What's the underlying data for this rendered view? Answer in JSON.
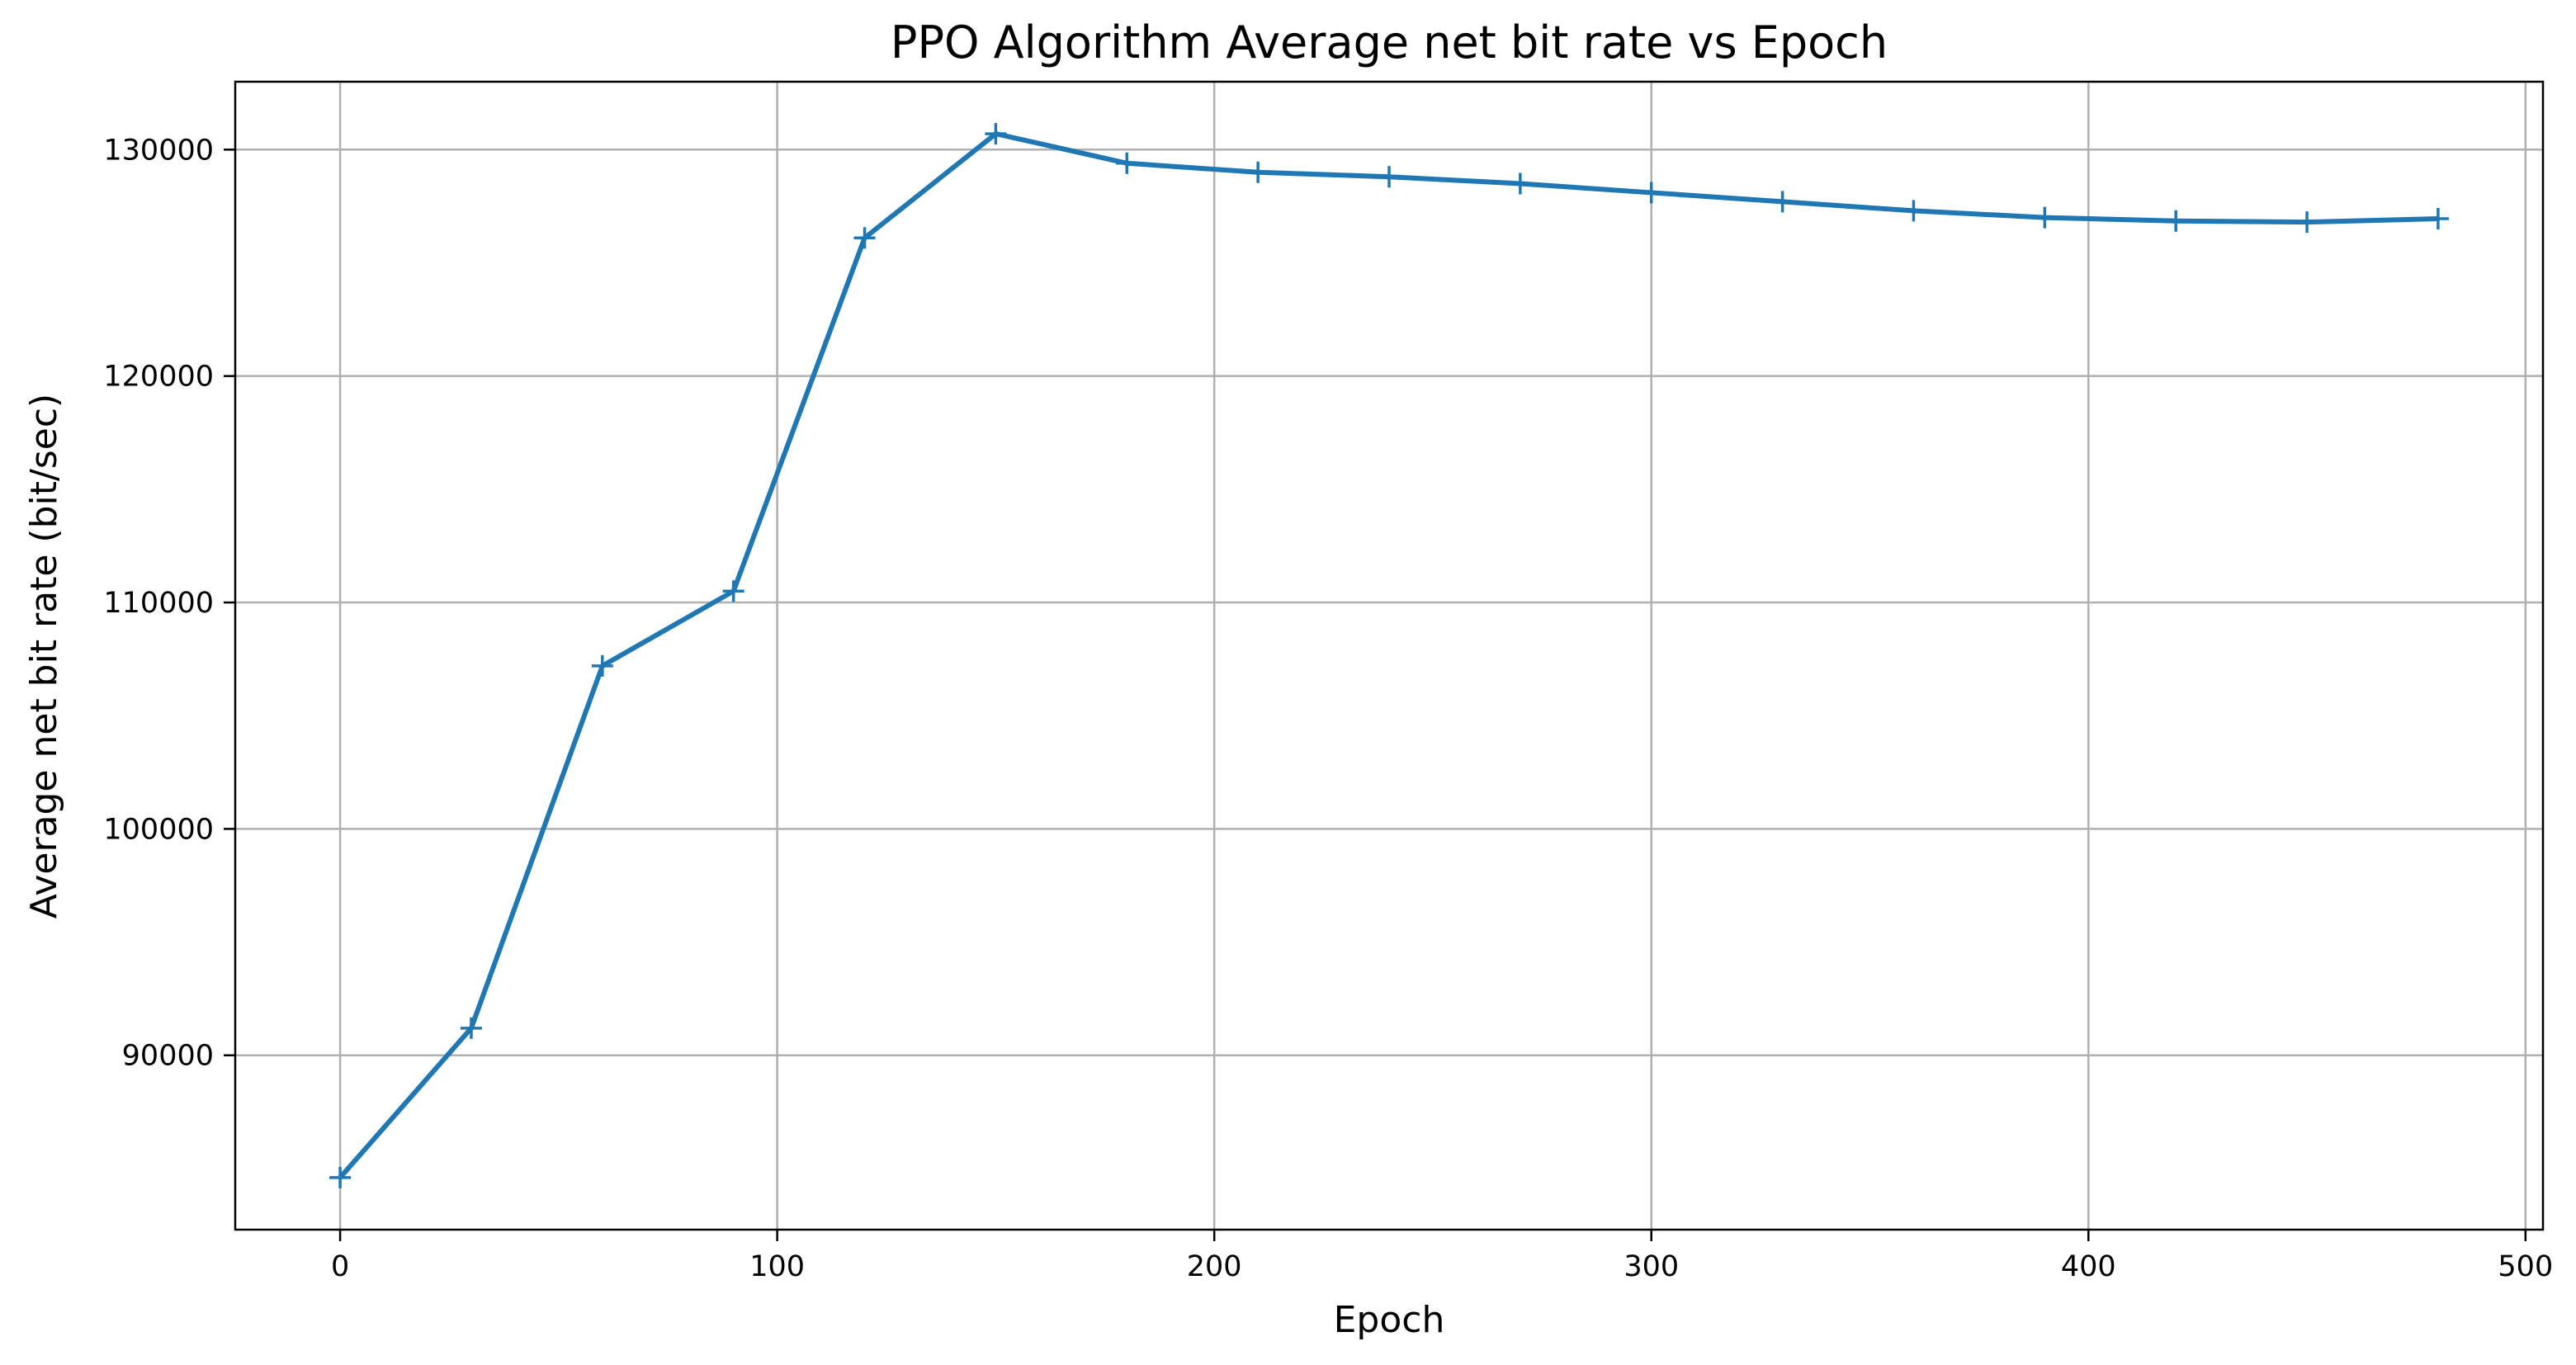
{
  "chart_data": {
    "type": "line",
    "title": "PPO Algorithm Average net bit rate vs Epoch",
    "xlabel": "Epoch",
    "ylabel": "Average net bit rate (bit/sec)",
    "xlim": [
      -24,
      504
    ],
    "ylim": [
      82300,
      133000
    ],
    "xticks": [
      0,
      100,
      200,
      300,
      400,
      500
    ],
    "yticks": [
      90000,
      100000,
      110000,
      120000,
      130000
    ],
    "grid": true,
    "series": [
      {
        "color": "#1f77b4",
        "marker": "+",
        "x": [
          0,
          30,
          60,
          90,
          120,
          150,
          180,
          210,
          240,
          270,
          300,
          330,
          360,
          390,
          420,
          450,
          480
        ],
        "y": [
          84600,
          91200,
          107200,
          110500,
          126100,
          130700,
          129400,
          129000,
          128800,
          128500,
          128100,
          127700,
          127300,
          127000,
          126850,
          126800,
          126950
        ]
      }
    ]
  }
}
